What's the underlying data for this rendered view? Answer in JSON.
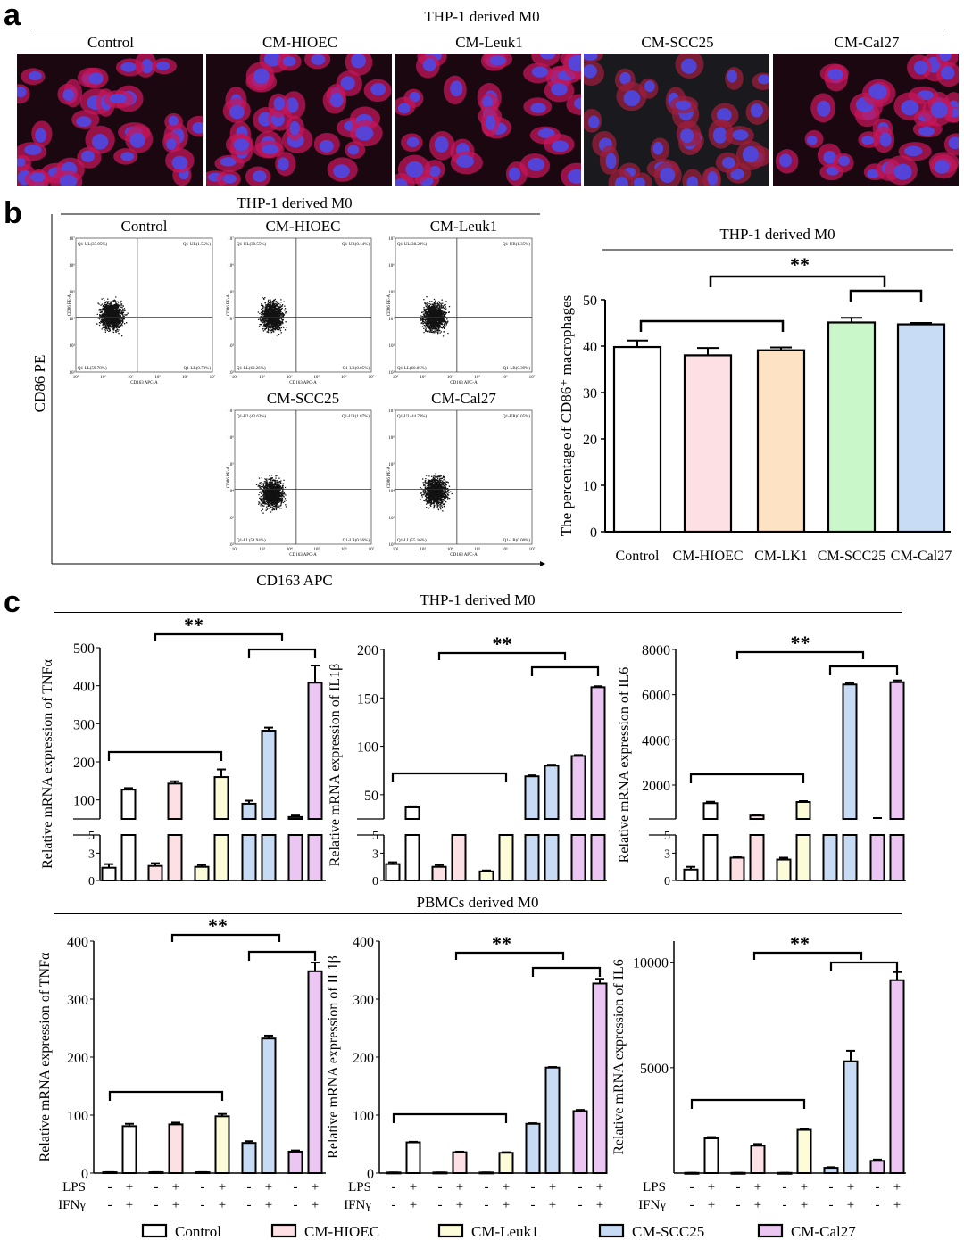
{
  "panel_a": {
    "label": "a",
    "title": "THP-1 derived M0",
    "images": [
      {
        "name": "Control"
      },
      {
        "name": "CM-HIOEC"
      },
      {
        "name": "CM-Leuk1"
      },
      {
        "name": "CM-SCC25"
      },
      {
        "name": "CM-Cal27"
      }
    ]
  },
  "panel_b": {
    "label": "b",
    "flow_title": "THP-1 derived M0",
    "y_axis": "CD86 PE",
    "x_axis": "CD163 APC",
    "flow_plots": [
      {
        "name": "Control",
        "ul": "Q1-UL(37.95%)",
        "ur": "Q1-UR(1.55%)",
        "ll": "Q1-LL(59.78%)",
        "lr": "Q1-LR(0.73%)"
      },
      {
        "name": "CM-HIOEC",
        "ul": "Q1-UL(39.55%)",
        "ur": "Q1-UR(0.14%)",
        "ll": "Q1-LL(60.26%)",
        "lr": "Q1-LR(0.05%)"
      },
      {
        "name": "CM-Leuk1",
        "ul": "Q1-UL(38.22%)",
        "ur": "Q1-UR(1.35%)",
        "ll": "Q1-LL(60.05%)",
        "lr": "Q1-LR(0.39%)"
      },
      {
        "name": "CM-SCC25",
        "ul": "Q1-UL(42.62%)",
        "ur": "Q1-UR(1.87%)",
        "ll": "Q1-LL(54.94%)",
        "lr": "Q1-LR(0.56%)"
      },
      {
        "name": "CM-Cal27",
        "ul": "Q1-UL(44.79%)",
        "ur": "Q1-UR(0.05%)",
        "ll": "Q1-LL(55.16%)",
        "lr": "Q1-LR(0.00%)"
      }
    ],
    "flow_axis_y": "CD86 PE-A",
    "flow_axis_x": "CD163 APC-A",
    "flow_ticks": [
      "10²",
      "10³",
      "10⁴",
      "10⁵",
      "10⁶",
      "10⁷"
    ]
  },
  "panel_c": {
    "label": "c",
    "thp_title": "THP-1 derived M0",
    "pbmc_title": "PBMCs derived M0",
    "treat_rows": [
      {
        "name": "LPS",
        "signs": [
          "-",
          "+",
          "-",
          "+",
          "-",
          "+",
          "-",
          "+",
          "-",
          "+"
        ]
      },
      {
        "name": "IFNγ",
        "signs": [
          "-",
          "+",
          "-",
          "+",
          "-",
          "+",
          "-",
          "+",
          "-",
          "+"
        ]
      }
    ],
    "sig": "**",
    "legend": [
      {
        "name": "Control",
        "color": "#ffffff"
      },
      {
        "name": "CM-HIOEC",
        "color": "#fde0e4"
      },
      {
        "name": "CM-Leuk1",
        "color": "#fdfcd8"
      },
      {
        "name": "CM-SCC25",
        "color": "#c7dcf4"
      },
      {
        "name": "CM-Cal27",
        "color": "#ebc6f2"
      }
    ]
  },
  "chart_data": [
    {
      "type": "bar",
      "title": "THP-1 derived M0",
      "xlabel": "",
      "ylabel": "The percentage of CD86⁺ macrophages",
      "categories": [
        "Control",
        "CM-HIOEC",
        "CM-LK1",
        "CM-SCC25",
        "CM-Cal27"
      ],
      "values": [
        39.8,
        38.0,
        39.1,
        45.1,
        44.7
      ],
      "errors": [
        1.4,
        1.6,
        0.6,
        1.0,
        0.3
      ],
      "colors": [
        "#ffffff",
        "#fde0e4",
        "#fde3c4",
        "#c9f7c9",
        "#c8dcf5"
      ],
      "ylim": [
        0,
        50
      ],
      "yticks": [
        0,
        10,
        20,
        30,
        40,
        50
      ],
      "sig": "**"
    },
    {
      "type": "bar",
      "group": "THP-1 derived M0",
      "ylabel": "Relative mRNA expression of TNFα",
      "categories": [
        "Control",
        "CM-HIOEC",
        "CM-Leuk1",
        "CM-SCC25",
        "CM-Cal27"
      ],
      "series": [
        {
          "name": "LPS- IFNγ-",
          "values": [
            1.4,
            1.6,
            1.5,
            90,
            55
          ],
          "errors": [
            0.4,
            0.3,
            0.2,
            8,
            4
          ]
        },
        {
          "name": "LPS+ IFNγ+",
          "values": [
            127,
            143,
            160,
            282,
            408
          ],
          "errors": [
            4,
            6,
            20,
            8,
            45
          ]
        }
      ],
      "yticks_upper": [
        100,
        200,
        300,
        400,
        500
      ],
      "yticks_lower": [
        0,
        3,
        5
      ],
      "sig": "**"
    },
    {
      "type": "bar",
      "group": "THP-1 derived M0",
      "ylabel": "Relative mRNA expression of IL1β",
      "categories": [
        "Control",
        "CM-HIOEC",
        "CM-Leuk1",
        "CM-SCC25",
        "CM-Cal27"
      ],
      "series": [
        {
          "name": "LPS- IFNγ-",
          "values": [
            1.8,
            1.5,
            1.0,
            69,
            90
          ],
          "errors": [
            0.2,
            0.2,
            0.1,
            1,
            1
          ]
        },
        {
          "name": "LPS+ IFNγ+",
          "values": [
            37,
            22,
            20,
            80,
            161
          ],
          "errors": [
            1,
            1,
            1,
            1,
            1
          ]
        }
      ],
      "yticks_upper": [
        50,
        100,
        150,
        200
      ],
      "yticks_lower": [
        0,
        3,
        5
      ],
      "sig": "**"
    },
    {
      "type": "bar",
      "group": "THP-1 derived M0",
      "ylabel": "Relative mRNA expression of IL6",
      "categories": [
        "Control",
        "CM-HIOEC",
        "CM-Leuk1",
        "CM-SCC25",
        "CM-Cal27"
      ],
      "series": [
        {
          "name": "LPS- IFNγ-",
          "values": [
            1.2,
            2.5,
            2.3,
            200,
            500
          ],
          "errors": [
            0.3,
            0.1,
            0.2,
            30,
            40
          ]
        },
        {
          "name": "LPS+ IFNγ+",
          "values": [
            1200,
            650,
            1250,
            6450,
            6550
          ],
          "errors": [
            60,
            30,
            40,
            50,
            80
          ]
        }
      ],
      "yticks_upper": [
        2000,
        4000,
        6000,
        8000
      ],
      "yticks_lower": [
        0,
        3,
        5
      ],
      "sig": "**"
    },
    {
      "type": "bar",
      "group": "PBMCs derived M0",
      "ylabel": "Relative mRNA expression of TNFα",
      "categories": [
        "Control",
        "CM-HIOEC",
        "CM-Leuk1",
        "CM-SCC25",
        "CM-Cal27"
      ],
      "series": [
        {
          "name": "LPS- IFNγ-",
          "values": [
            1.5,
            1.5,
            1.5,
            52,
            37
          ],
          "errors": [
            0.2,
            0.2,
            0.2,
            3,
            2
          ]
        },
        {
          "name": "LPS+ IFNγ+",
          "values": [
            81,
            84,
            98,
            232,
            348
          ],
          "errors": [
            4,
            3,
            4,
            5,
            15
          ]
        }
      ],
      "ylim": [
        0,
        400
      ],
      "yticks": [
        0,
        100,
        200,
        300,
        400
      ],
      "sig": "**"
    },
    {
      "type": "bar",
      "group": "PBMCs derived M0",
      "ylabel": "Relative mRNA expression of  IL1β",
      "categories": [
        "Control",
        "CM-HIOEC",
        "CM-Leuk1",
        "CM-SCC25",
        "CM-Cal27"
      ],
      "series": [
        {
          "name": "LPS- IFNγ-",
          "values": [
            1,
            1,
            1,
            85,
            107
          ],
          "errors": [
            0.1,
            0.1,
            0.1,
            1,
            2
          ]
        },
        {
          "name": "LPS+ IFNγ+",
          "values": [
            53,
            36,
            35,
            182,
            327
          ],
          "errors": [
            1,
            1,
            1,
            1,
            8
          ]
        }
      ],
      "ylim": [
        0,
        400
      ],
      "yticks": [
        0,
        100,
        200,
        300,
        400
      ],
      "sig": "**"
    },
    {
      "type": "bar",
      "group": "PBMCs derived M0",
      "ylabel": "Relative mRNA expression of IL6",
      "categories": [
        "Control",
        "CM-HIOEC",
        "CM-Leuk1",
        "CM-SCC25",
        "CM-Cal27"
      ],
      "series": [
        {
          "name": "LPS- IFNγ-",
          "values": [
            10,
            10,
            10,
            250,
            580
          ],
          "errors": [
            2,
            2,
            2,
            30,
            60
          ]
        },
        {
          "name": "LPS+ IFNγ+",
          "values": [
            1650,
            1300,
            2050,
            5300,
            9150
          ],
          "errors": [
            60,
            80,
            40,
            500,
            380
          ]
        }
      ],
      "ylim": [
        0,
        11000
      ],
      "yticks": [
        5000,
        10000
      ],
      "sig": "**"
    }
  ]
}
